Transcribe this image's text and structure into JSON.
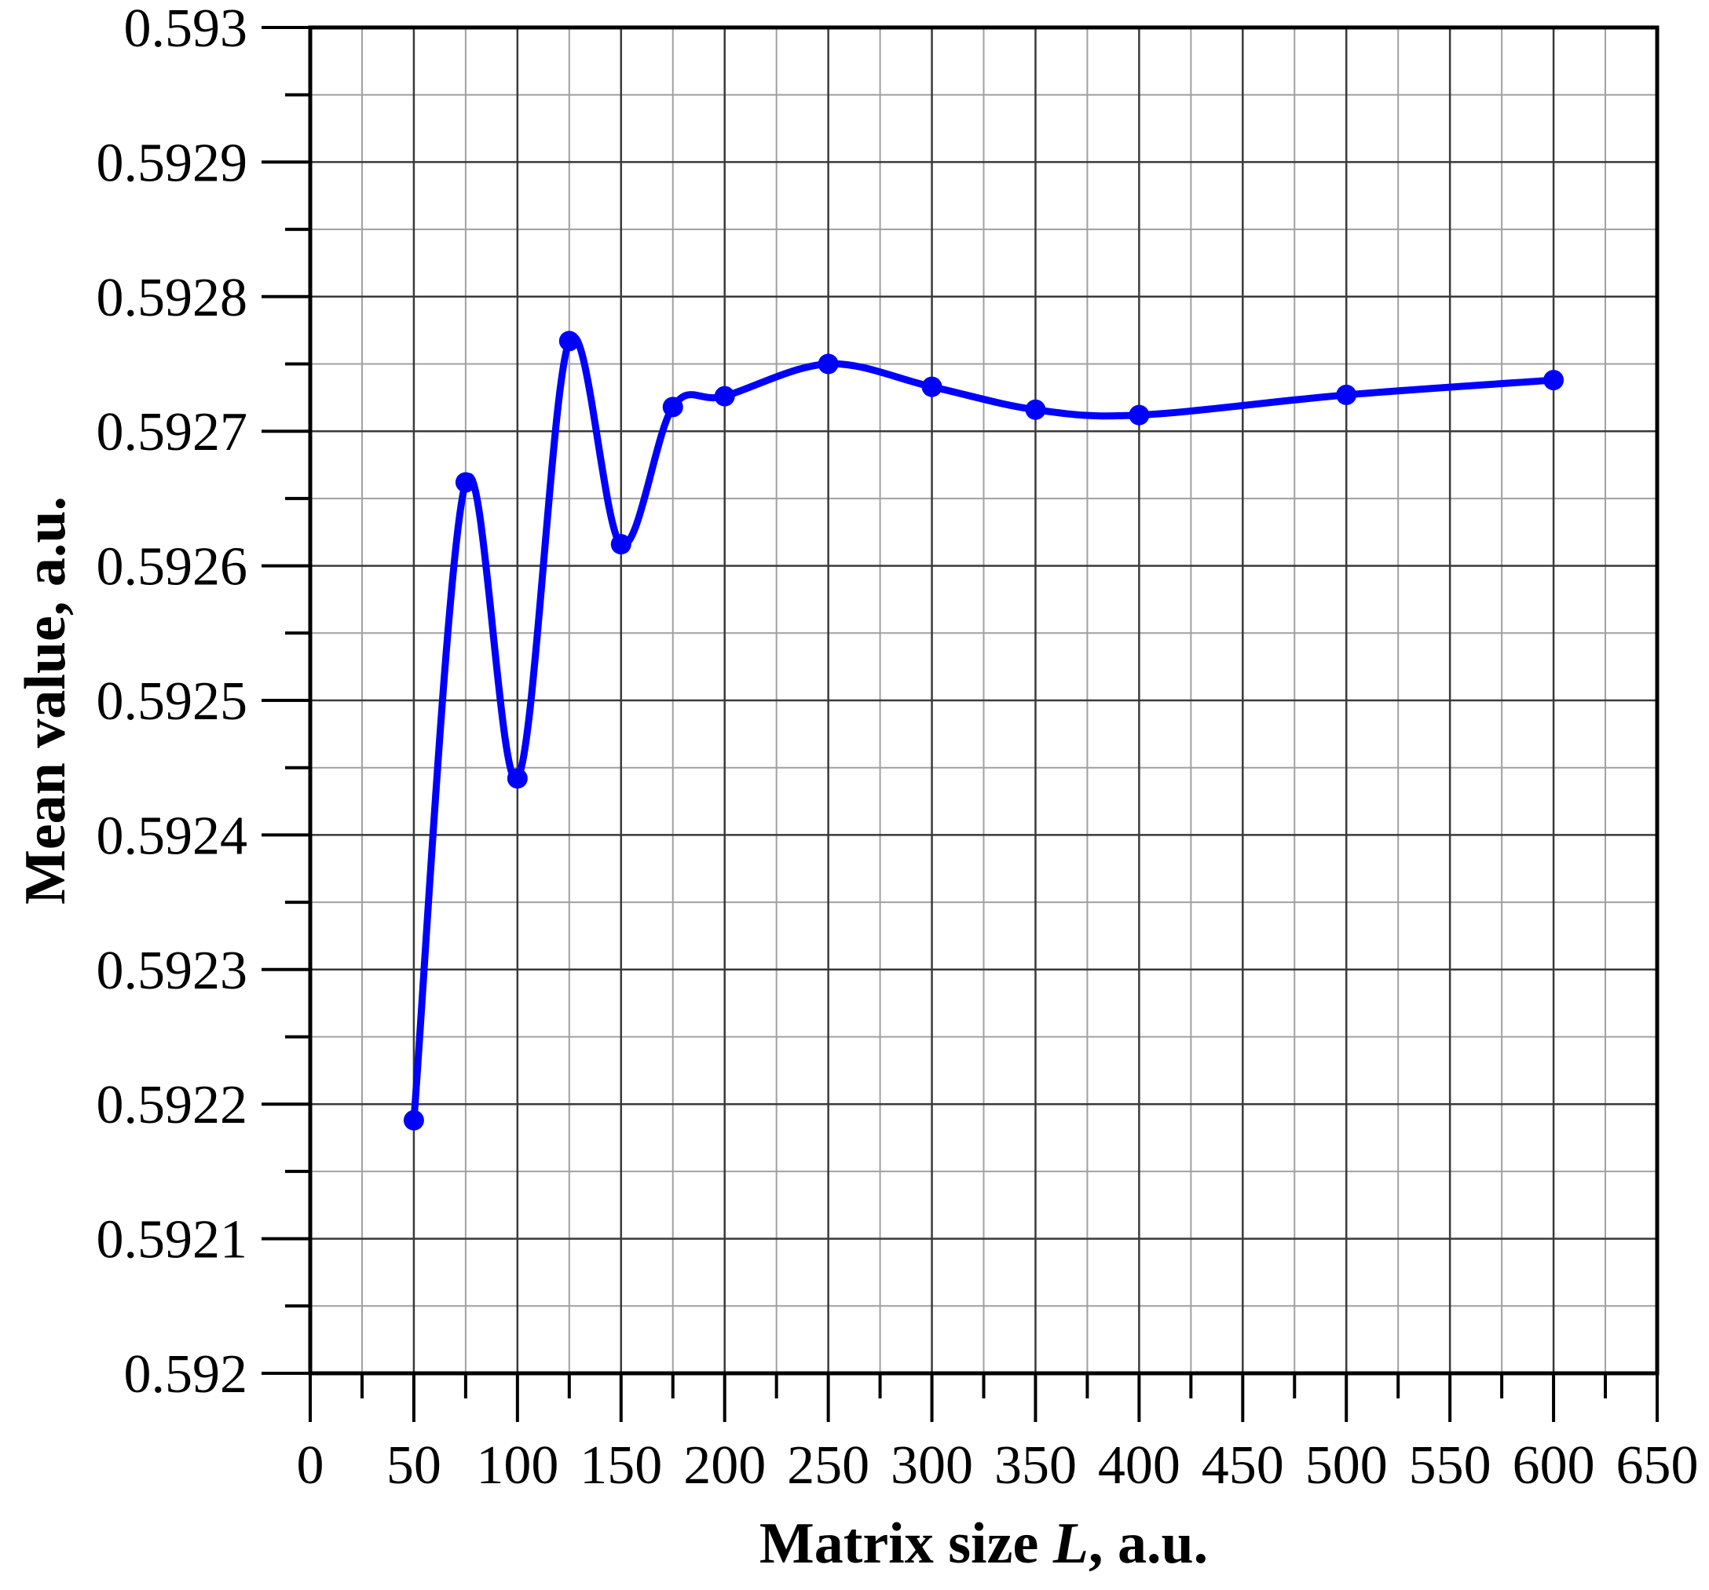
{
  "chart_data": {
    "type": "line",
    "title": "",
    "xlabel_parts": [
      "Matrix size ",
      "L",
      ", a.u."
    ],
    "ylabel": "Mean value, a.u.",
    "xlim": [
      0,
      650
    ],
    "ylim": [
      0.592,
      0.593
    ],
    "x_ticks": [
      0,
      50,
      100,
      150,
      200,
      250,
      300,
      350,
      400,
      450,
      500,
      550,
      600,
      650
    ],
    "x_tick_labels": [
      "0",
      "50",
      "100",
      "150",
      "200",
      "250",
      "300",
      "350",
      "400",
      "450",
      "500",
      "550",
      "600",
      "650"
    ],
    "y_ticks": [
      0.592,
      0.5921,
      0.5922,
      0.5923,
      0.5924,
      0.5925,
      0.5926,
      0.5927,
      0.5928,
      0.5929,
      0.593
    ],
    "y_tick_labels": [
      "0.592",
      "0.5921",
      "0.5922",
      "0.5923",
      "0.5924",
      "0.5925",
      "0.5926",
      "0.5927",
      "0.5928",
      "0.5929",
      "0.593"
    ],
    "grid": true,
    "legend": "none",
    "series": [
      {
        "color": "#0000ff",
        "marker": "circle",
        "smooth": true,
        "x": [
          50,
          75,
          100,
          125,
          150,
          175,
          200,
          250,
          300,
          350,
          400,
          500,
          600
        ],
        "y": [
          0.592188,
          0.592662,
          0.592442,
          0.592767,
          0.592616,
          0.592718,
          0.592726,
          0.59275,
          0.592733,
          0.592716,
          0.592712,
          0.592727,
          0.592738
        ]
      }
    ]
  }
}
